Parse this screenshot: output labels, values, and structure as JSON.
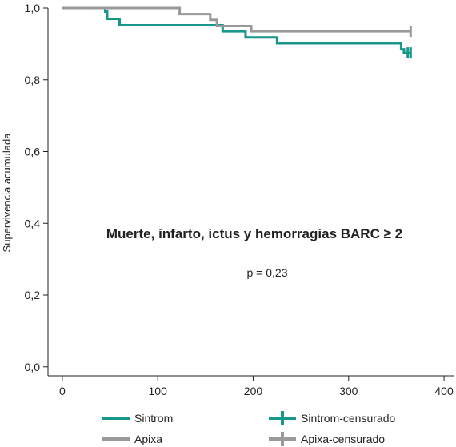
{
  "chart_data": {
    "type": "line",
    "step": true,
    "title": "",
    "ylabel": "Supervivencia acumulada",
    "xlabel": "",
    "xlim": [
      -15,
      410
    ],
    "ylim": [
      -0.025,
      1.0
    ],
    "x_ticks": [
      0,
      100,
      200,
      300,
      400
    ],
    "x_tick_labels": [
      "0",
      "100",
      "200",
      "300",
      "400"
    ],
    "y_ticks": [
      0.0,
      0.2,
      0.4,
      0.6,
      0.8,
      1.0
    ],
    "y_tick_labels": [
      "0,0",
      "0,2",
      "0,4",
      "0,6",
      "0,8",
      "1,0"
    ],
    "grid": false,
    "annotations": {
      "main": "Muerte, infarto, ictus y hemorragias BARC ≥ 2",
      "p_value": "p = 0,23"
    },
    "legend_position": "bottom",
    "series": [
      {
        "name": "Sintrom",
        "color": "#17968a",
        "x": [
          0,
          45,
          47,
          60,
          168,
          192,
          225,
          355,
          358,
          362,
          365
        ],
        "y": [
          1.0,
          0.99,
          0.97,
          0.952,
          0.935,
          0.918,
          0.902,
          0.885,
          0.875,
          0.875,
          0.875
        ]
      },
      {
        "name": "Apixa",
        "color": "#9a9a9a",
        "x": [
          0,
          123,
          155,
          162,
          198,
          365
        ],
        "y": [
          1.0,
          0.983,
          0.967,
          0.95,
          0.935,
          0.935
        ]
      }
    ],
    "censored": [
      {
        "name": "Sintrom-censurado",
        "color": "#17968a",
        "x": [
          362,
          365
        ],
        "y": [
          0.875,
          0.875
        ]
      },
      {
        "name": "Apixa-censurado",
        "color": "#9a9a9a",
        "x": [
          365
        ],
        "y": [
          0.935
        ]
      }
    ]
  }
}
